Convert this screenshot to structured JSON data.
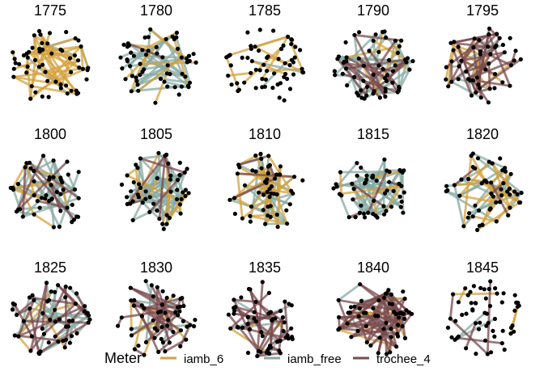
{
  "chart_data": {
    "type": "network",
    "title": "",
    "legend": {
      "title": "Meter",
      "position": "bottom",
      "entries": [
        {
          "key": "iamb_6",
          "label": "iamb_6",
          "color": "#D4A23C"
        },
        {
          "key": "iamb_free",
          "label": "iamb_free",
          "color": "#86A9A1"
        },
        {
          "key": "trochee_4",
          "label": "trochee_4",
          "color": "#7A4A4E"
        }
      ]
    },
    "node_color": "#000000",
    "panels": [
      {
        "label": "1775",
        "edges": {
          "iamb_6": 40,
          "iamb_free": 4,
          "trochee_4": 0
        }
      },
      {
        "label": "1780",
        "edges": {
          "iamb_6": 10,
          "iamb_free": 36,
          "trochee_4": 1
        }
      },
      {
        "label": "1785",
        "edges": {
          "iamb_6": 14,
          "iamb_free": 2,
          "trochee_4": 0
        }
      },
      {
        "label": "1790",
        "edges": {
          "iamb_6": 6,
          "iamb_free": 26,
          "trochee_4": 24
        }
      },
      {
        "label": "1795",
        "edges": {
          "iamb_6": 14,
          "iamb_free": 10,
          "trochee_4": 34
        }
      },
      {
        "label": "1800",
        "edges": {
          "iamb_6": 10,
          "iamb_free": 36,
          "trochee_4": 10
        }
      },
      {
        "label": "1805",
        "edges": {
          "iamb_6": 14,
          "iamb_free": 46,
          "trochee_4": 6
        }
      },
      {
        "label": "1810",
        "edges": {
          "iamb_6": 32,
          "iamb_free": 30,
          "trochee_4": 6
        }
      },
      {
        "label": "1815",
        "edges": {
          "iamb_6": 6,
          "iamb_free": 52,
          "trochee_4": 4
        }
      },
      {
        "label": "1820",
        "edges": {
          "iamb_6": 26,
          "iamb_free": 24,
          "trochee_4": 4
        }
      },
      {
        "label": "1825",
        "edges": {
          "iamb_6": 6,
          "iamb_free": 26,
          "trochee_4": 24
        }
      },
      {
        "label": "1830",
        "edges": {
          "iamb_6": 8,
          "iamb_free": 8,
          "trochee_4": 34
        }
      },
      {
        "label": "1835",
        "edges": {
          "iamb_6": 4,
          "iamb_free": 8,
          "trochee_4": 34
        }
      },
      {
        "label": "1840",
        "edges": {
          "iamb_6": 16,
          "iamb_free": 10,
          "trochee_4": 64
        }
      },
      {
        "label": "1845",
        "edges": {
          "iamb_6": 4,
          "iamb_free": 2,
          "trochee_4": 6
        }
      }
    ]
  }
}
